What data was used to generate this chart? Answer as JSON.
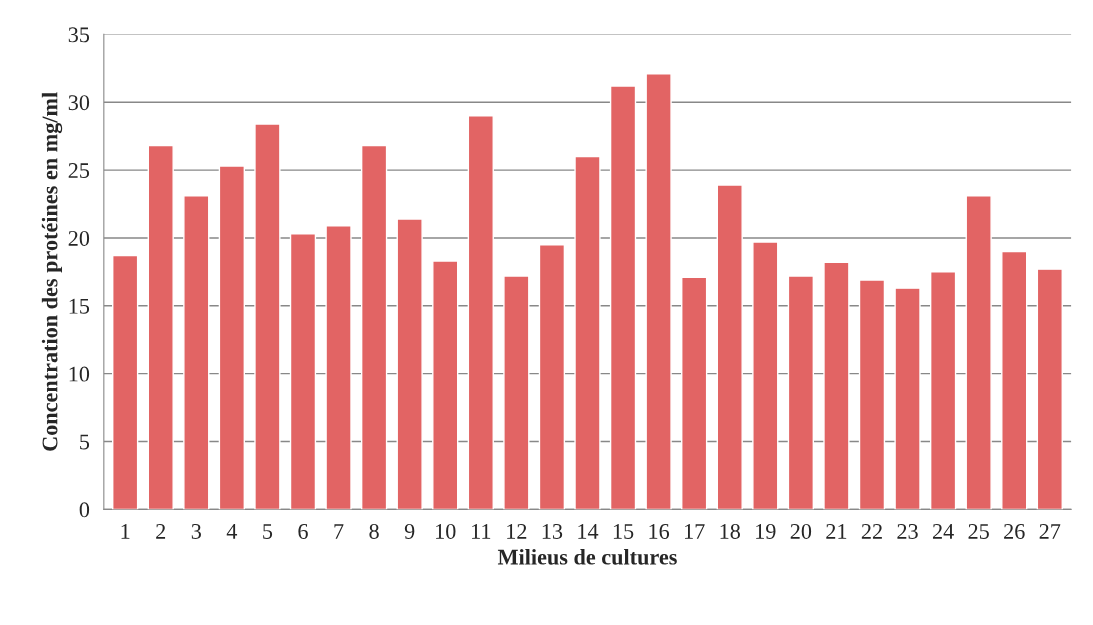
{
  "chart_data": {
    "type": "bar",
    "xlabel": "Milieus de cultures",
    "ylabel": "Concentration des protéines en mg/ml",
    "categories": [
      "1",
      "2",
      "3",
      "4",
      "5",
      "6",
      "7",
      "8",
      "9",
      "10",
      "11",
      "12",
      "13",
      "14",
      "15",
      "16",
      "17",
      "18",
      "19",
      "20",
      "21",
      "22",
      "23",
      "24",
      "25",
      "26",
      "27"
    ],
    "values": [
      18.7,
      26.8,
      23.1,
      25.3,
      28.4,
      20.3,
      20.9,
      26.8,
      21.4,
      18.3,
      29.0,
      17.2,
      19.5,
      26.0,
      31.2,
      32.1,
      17.1,
      23.9,
      19.7,
      17.2,
      18.2,
      16.9,
      16.3,
      17.5,
      23.1,
      19.0,
      17.7
    ],
    "color": "#e26464",
    "ylim": [
      0,
      35
    ],
    "yticks": [
      0,
      5,
      10,
      15,
      20,
      25,
      30,
      35
    ],
    "grid": "y",
    "legend": false
  }
}
